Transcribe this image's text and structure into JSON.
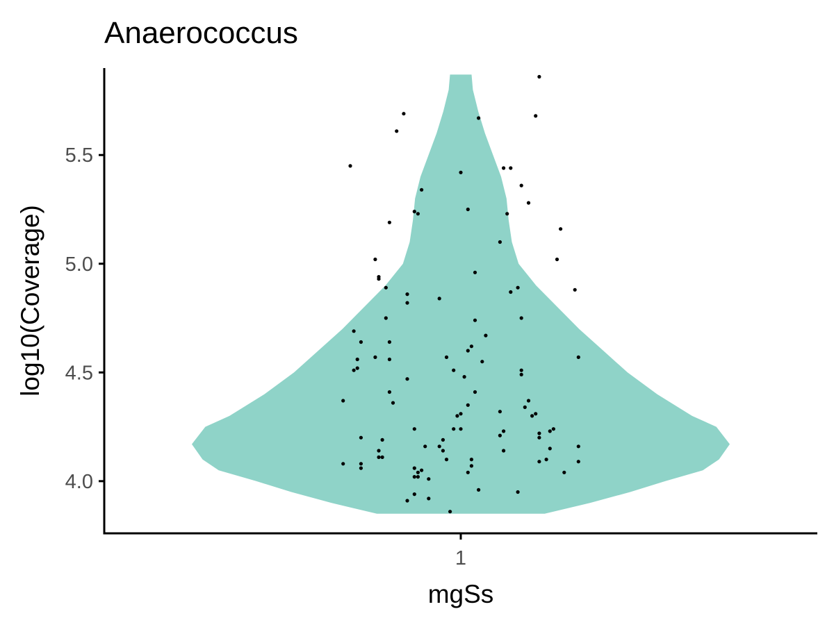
{
  "chart_data": {
    "type": "violin",
    "title": "Anaerococcus",
    "xlabel": "mgSs",
    "ylabel": "log10(Coverage)",
    "categories": [
      "1"
    ],
    "y_ticks": [
      "4.0",
      "4.5",
      "5.0",
      "5.5"
    ],
    "ylim": [
      3.76,
      5.9
    ],
    "grid": false,
    "legend": "none",
    "violin": {
      "color": "#8fd3c8",
      "y_min": 3.85,
      "y_max": 5.87,
      "density_profile": [
        [
          3.85,
          0.312
        ],
        [
          3.9,
          0.48
        ],
        [
          3.95,
          0.63
        ],
        [
          4.0,
          0.76
        ],
        [
          4.05,
          0.9
        ],
        [
          4.1,
          0.96
        ],
        [
          4.17,
          1.0
        ],
        [
          4.25,
          0.95
        ],
        [
          4.3,
          0.86
        ],
        [
          4.4,
          0.73
        ],
        [
          4.5,
          0.62
        ],
        [
          4.6,
          0.53
        ],
        [
          4.7,
          0.44
        ],
        [
          4.8,
          0.36
        ],
        [
          4.9,
          0.28
        ],
        [
          5.0,
          0.215
        ],
        [
          5.1,
          0.19
        ],
        [
          5.2,
          0.178
        ],
        [
          5.3,
          0.17
        ],
        [
          5.4,
          0.15
        ],
        [
          5.5,
          0.12
        ],
        [
          5.6,
          0.09
        ],
        [
          5.7,
          0.065
        ],
        [
          5.8,
          0.045
        ],
        [
          5.87,
          0.04
        ]
      ]
    },
    "points": [
      [
        1.22,
        5.86
      ],
      [
        0.84,
        5.69
      ],
      [
        1.05,
        5.67
      ],
      [
        1.21,
        5.68
      ],
      [
        0.82,
        5.61
      ],
      [
        0.69,
        5.45
      ],
      [
        1.12,
        5.44
      ],
      [
        1.14,
        5.44
      ],
      [
        1.0,
        5.42
      ],
      [
        1.17,
        5.36
      ],
      [
        0.89,
        5.34
      ],
      [
        1.19,
        5.28
      ],
      [
        0.87,
        5.24
      ],
      [
        0.88,
        5.23
      ],
      [
        1.02,
        5.25
      ],
      [
        1.13,
        5.23
      ],
      [
        0.8,
        5.19
      ],
      [
        1.28,
        5.16
      ],
      [
        1.11,
        5.1
      ],
      [
        0.76,
        5.02
      ],
      [
        1.27,
        5.02
      ],
      [
        1.04,
        4.96
      ],
      [
        0.77,
        4.94
      ],
      [
        0.77,
        4.93
      ],
      [
        0.79,
        4.89
      ],
      [
        1.16,
        4.89
      ],
      [
        1.14,
        4.87
      ],
      [
        1.32,
        4.88
      ],
      [
        0.85,
        4.86
      ],
      [
        0.85,
        4.82
      ],
      [
        0.94,
        4.84
      ],
      [
        1.17,
        4.75
      ],
      [
        0.79,
        4.75
      ],
      [
        1.04,
        4.74
      ],
      [
        0.7,
        4.69
      ],
      [
        1.07,
        4.67
      ],
      [
        0.72,
        4.64
      ],
      [
        0.8,
        4.64
      ],
      [
        1.03,
        4.62
      ],
      [
        1.02,
        4.6
      ],
      [
        0.71,
        4.56
      ],
      [
        0.76,
        4.57
      ],
      [
        0.8,
        4.56
      ],
      [
        0.96,
        4.57
      ],
      [
        1.06,
        4.55
      ],
      [
        1.33,
        4.57
      ],
      [
        0.71,
        4.52
      ],
      [
        0.7,
        4.51
      ],
      [
        0.98,
        4.51
      ],
      [
        1.17,
        4.51
      ],
      [
        1.17,
        4.49
      ],
      [
        0.85,
        4.47
      ],
      [
        1.01,
        4.48
      ],
      [
        1.04,
        4.41
      ],
      [
        0.8,
        4.41
      ],
      [
        0.81,
        4.36
      ],
      [
        0.67,
        4.37
      ],
      [
        1.19,
        4.37
      ],
      [
        1.02,
        4.35
      ],
      [
        1.18,
        4.34
      ],
      [
        1.11,
        4.32
      ],
      [
        1.0,
        4.31
      ],
      [
        0.99,
        4.3
      ],
      [
        1.2,
        4.3
      ],
      [
        1.21,
        4.31
      ],
      [
        0.87,
        4.24
      ],
      [
        0.98,
        4.24
      ],
      [
        1.0,
        4.24
      ],
      [
        1.22,
        4.22
      ],
      [
        1.25,
        4.23
      ],
      [
        1.26,
        4.24
      ],
      [
        1.12,
        4.23
      ],
      [
        1.11,
        4.21
      ],
      [
        1.22,
        4.2
      ],
      [
        0.72,
        4.2
      ],
      [
        0.78,
        4.19
      ],
      [
        0.95,
        4.19
      ],
      [
        0.9,
        4.16
      ],
      [
        0.94,
        4.16
      ],
      [
        1.33,
        4.16
      ],
      [
        0.95,
        4.14
      ],
      [
        1.25,
        4.15
      ],
      [
        1.12,
        4.14
      ],
      [
        0.77,
        4.14
      ],
      [
        0.78,
        4.11
      ],
      [
        0.77,
        4.11
      ],
      [
        0.96,
        4.1
      ],
      [
        1.03,
        4.1
      ],
      [
        1.24,
        4.1
      ],
      [
        1.22,
        4.09
      ],
      [
        1.33,
        4.09
      ],
      [
        0.67,
        4.08
      ],
      [
        0.72,
        4.08
      ],
      [
        0.72,
        4.06
      ],
      [
        0.87,
        4.06
      ],
      [
        1.03,
        4.07
      ],
      [
        0.88,
        4.04
      ],
      [
        0.89,
        4.05
      ],
      [
        1.02,
        4.04
      ],
      [
        1.29,
        4.04
      ],
      [
        0.87,
        4.02
      ],
      [
        0.88,
        4.02
      ],
      [
        0.91,
        4.01
      ],
      [
        1.05,
        3.96
      ],
      [
        1.16,
        3.95
      ],
      [
        0.87,
        3.94
      ],
      [
        0.91,
        3.92
      ],
      [
        0.85,
        3.91
      ],
      [
        0.97,
        3.86
      ]
    ]
  }
}
